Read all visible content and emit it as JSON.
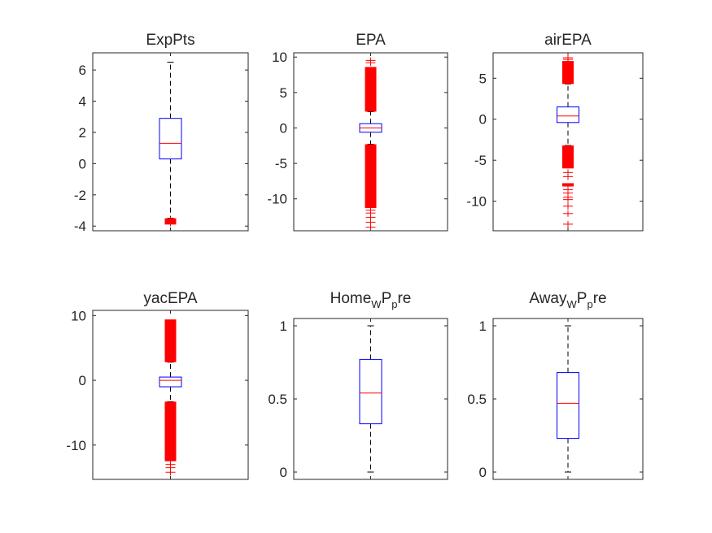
{
  "colors": {
    "box": "#0000ff",
    "median": "#ff0000",
    "whisker": "#000000",
    "outlier": "#ff0000",
    "axis": "#262626"
  },
  "chart_data": [
    {
      "type": "boxplot",
      "title": "ExpPts",
      "ylim": [
        -4.3,
        7.1
      ],
      "yticks": [
        -4,
        -2,
        0,
        2,
        4,
        6
      ],
      "ytick_labels": [
        "-4",
        "-2",
        "0",
        "2",
        "4",
        "6"
      ],
      "q1": 0.3,
      "median": 1.3,
      "q3": 2.9,
      "whisker_low": -3.5,
      "whisker_high": 6.5,
      "outlier_bands": [
        [
          -3.9,
          -3.5
        ]
      ],
      "outliers": [
        -3.6,
        -3.7,
        -3.8
      ]
    },
    {
      "type": "boxplot",
      "title": "EPA",
      "ylim": [
        -14.5,
        10.6
      ],
      "yticks": [
        -10,
        -5,
        0,
        5,
        10
      ],
      "ytick_labels": [
        "-10",
        "-5",
        "0",
        "5",
        "10"
      ],
      "q1": -0.6,
      "median": 0.0,
      "q3": 0.6,
      "whisker_low": -2.3,
      "whisker_high": 2.3,
      "outlier_bands": [
        [
          -11.3,
          -2.3
        ],
        [
          2.3,
          8.6
        ]
      ],
      "outliers": [
        -14.0,
        -13.3,
        -12.6,
        -12.0,
        -11.6,
        9.2,
        9.5
      ]
    },
    {
      "type": "boxplot",
      "title": "airEPA",
      "ylim": [
        -13.6,
        8.1
      ],
      "yticks": [
        -10,
        -5,
        0,
        5
      ],
      "ytick_labels": [
        "-10",
        "-5",
        "0",
        "5"
      ],
      "q1": -0.4,
      "median": 0.4,
      "q3": 1.5,
      "whisker_low": -3.2,
      "whisker_high": 4.3,
      "outlier_bands": [
        [
          -6.0,
          -3.2
        ],
        [
          -8.2,
          -7.8
        ],
        [
          4.3,
          7.1
        ]
      ],
      "outliers": [
        -6.5,
        -7.0,
        -8.6,
        -9.0,
        -9.5,
        -9.8,
        -10.6,
        -11.5,
        -12.8,
        7.3,
        7.5
      ]
    },
    {
      "type": "boxplot",
      "title": "yacEPA",
      "ylim": [
        -15.3,
        10.8
      ],
      "yticks": [
        -10,
        0,
        10
      ],
      "ytick_labels": [
        "-10",
        "0",
        "10"
      ],
      "q1": -1.0,
      "median": 0.0,
      "q3": 0.5,
      "whisker_low": -3.3,
      "whisker_high": 2.8,
      "outlier_bands": [
        [
          -12.5,
          -3.3
        ],
        [
          2.8,
          9.4
        ]
      ],
      "outliers": [
        -13.0,
        -13.5,
        -14.2
      ]
    },
    {
      "type": "boxplot",
      "title_main": "Home",
      "title_sub1": "W",
      "title_mid": "P",
      "title_sub2": "p",
      "title_end": "re",
      "ylim": [
        -0.05,
        1.05
      ],
      "yticks": [
        0,
        0.5,
        1
      ],
      "ytick_labels": [
        "0",
        "0.5",
        "1"
      ],
      "q1": 0.33,
      "median": 0.54,
      "q3": 0.77,
      "whisker_low": 0.0,
      "whisker_high": 1.0,
      "outlier_bands": [],
      "outliers": []
    },
    {
      "type": "boxplot",
      "title_main": "Away",
      "title_sub1": "W",
      "title_mid": "P",
      "title_sub2": "p",
      "title_end": "re",
      "ylim": [
        -0.05,
        1.05
      ],
      "yticks": [
        0,
        0.5,
        1
      ],
      "ytick_labels": [
        "0",
        "0.5",
        "1"
      ],
      "q1": 0.23,
      "median": 0.47,
      "q3": 0.68,
      "whisker_low": 0.0,
      "whisker_high": 1.0,
      "outlier_bands": [],
      "outliers": []
    }
  ]
}
